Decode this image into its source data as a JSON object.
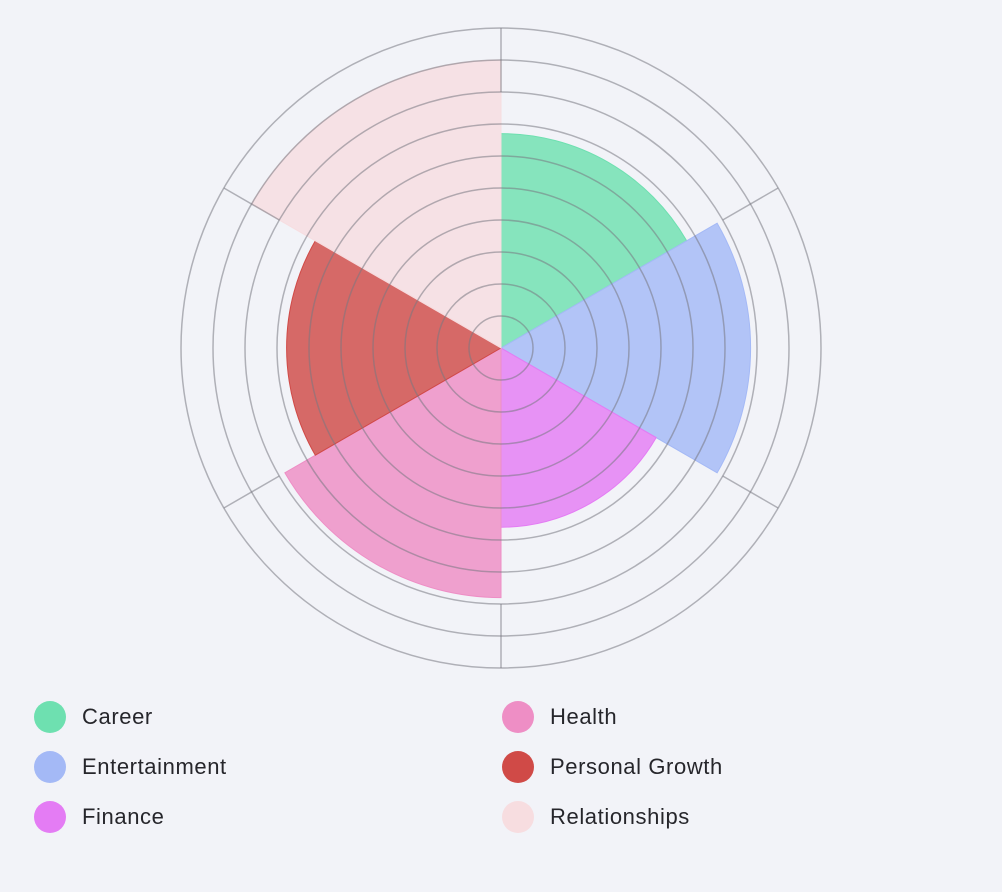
{
  "chart_data": {
    "type": "polar-area",
    "categories": [
      "Career",
      "Entertainment",
      "Finance",
      "Health",
      "Personal Growth",
      "Relationships"
    ],
    "values": [
      6.7,
      7.8,
      5.6,
      7.8,
      6.7,
      9
    ],
    "colors": [
      "#6ee0b0",
      "#a4b9f6",
      "#e47cf4",
      "#ee8ec5",
      "#d04a47",
      "#f7dde0"
    ],
    "rmax": 10,
    "rings": 10,
    "grid": true
  },
  "legend": {
    "items": [
      {
        "label": "Career",
        "color": "#6ee0b0"
      },
      {
        "label": "Entertainment",
        "color": "#a4b9f6"
      },
      {
        "label": "Finance",
        "color": "#e47cf4"
      },
      {
        "label": "Health",
        "color": "#ee8ec5"
      },
      {
        "label": "Personal Growth",
        "color": "#d04a47"
      },
      {
        "label": "Relationships",
        "color": "#f7dde0"
      }
    ]
  }
}
